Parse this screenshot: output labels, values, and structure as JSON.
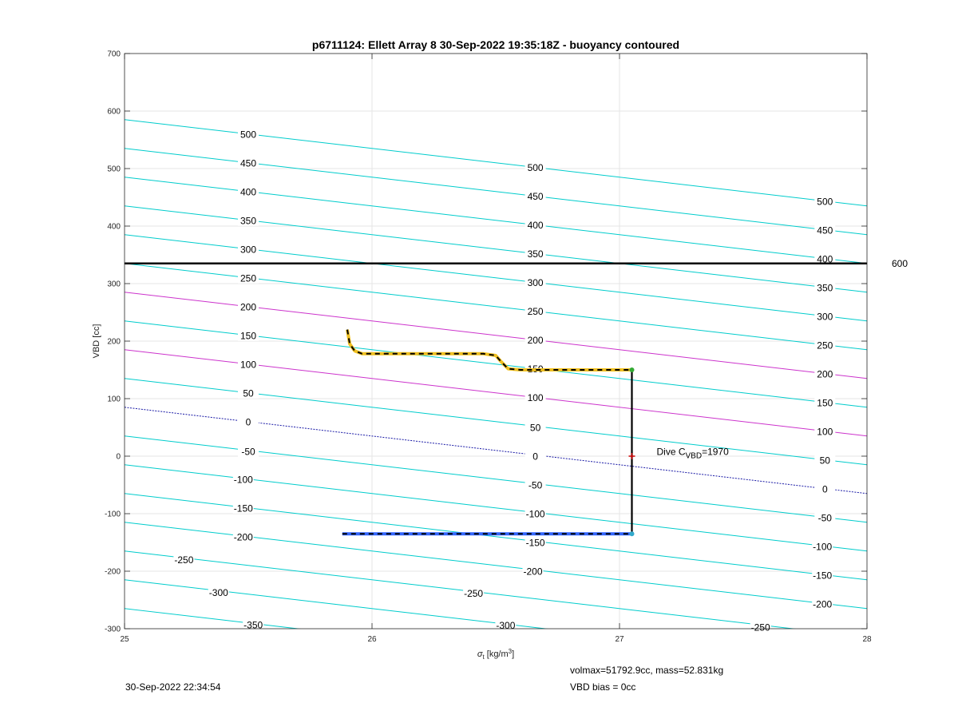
{
  "chart_data": {
    "type": "line",
    "title": "p6711124: Ellett Array 8 30-Sep-2022 19:35:18Z - buoyancy contoured",
    "xlabel": "σt [kg/m3]",
    "ylabel": "VBD [cc]",
    "xlim": [
      25,
      28
    ],
    "ylim": [
      -300,
      700
    ],
    "xticks": [
      25,
      26,
      27,
      28
    ],
    "yticks": [
      -300,
      -200,
      -100,
      0,
      100,
      200,
      300,
      400,
      500,
      600,
      700
    ],
    "grid": true,
    "contours": {
      "slope_cc_per_kgm3": -50,
      "lines": [
        {
          "level": -350,
          "y_at_25": -265,
          "color": "#00cccc"
        },
        {
          "level": -300,
          "y_at_25": -215,
          "color": "#00cccc"
        },
        {
          "level": -250,
          "y_at_25": -165,
          "color": "#00cccc"
        },
        {
          "level": -200,
          "y_at_25": -115,
          "color": "#00cccc"
        },
        {
          "level": -150,
          "y_at_25": -65,
          "color": "#00cccc"
        },
        {
          "level": -100,
          "y_at_25": -15,
          "color": "#00cccc"
        },
        {
          "level": -50,
          "y_at_25": 35,
          "color": "#00cccc"
        },
        {
          "level": 0,
          "y_at_25": 85,
          "color": "#1a1aa6",
          "dotted": true
        },
        {
          "level": 50,
          "y_at_25": 135,
          "color": "#00cccc"
        },
        {
          "level": 100,
          "y_at_25": 185,
          "color": "#cc33cc"
        },
        {
          "level": 150,
          "y_at_25": 235,
          "color": "#00cccc"
        },
        {
          "level": 200,
          "y_at_25": 285,
          "color": "#cc33cc"
        },
        {
          "level": 250,
          "y_at_25": 335,
          "color": "#00cccc"
        },
        {
          "level": 300,
          "y_at_25": 385,
          "color": "#00cccc"
        },
        {
          "level": 350,
          "y_at_25": 435,
          "color": "#00cccc"
        },
        {
          "level": 400,
          "y_at_25": 485,
          "color": "#00cccc"
        },
        {
          "level": 450,
          "y_at_25": 535,
          "color": "#00cccc"
        },
        {
          "level": 500,
          "y_at_25": 585,
          "color": "#00cccc"
        }
      ],
      "labels": [
        {
          "text": "500",
          "x": 25.5,
          "y": 560
        },
        {
          "text": "450",
          "x": 25.5,
          "y": 510
        },
        {
          "text": "400",
          "x": 25.5,
          "y": 460
        },
        {
          "text": "350",
          "x": 25.5,
          "y": 410
        },
        {
          "text": "300",
          "x": 25.5,
          "y": 360
        },
        {
          "text": "250",
          "x": 25.5,
          "y": 310
        },
        {
          "text": "200",
          "x": 25.5,
          "y": 260
        },
        {
          "text": "150",
          "x": 25.5,
          "y": 210
        },
        {
          "text": "100",
          "x": 25.5,
          "y": 160
        },
        {
          "text": "50",
          "x": 25.5,
          "y": 110
        },
        {
          "text": "0",
          "x": 25.5,
          "y": 60
        },
        {
          "text": "-50",
          "x": 25.5,
          "y": 8
        },
        {
          "text": "-100",
          "x": 25.48,
          "y": -40
        },
        {
          "text": "-150",
          "x": 25.48,
          "y": -90
        },
        {
          "text": "-200",
          "x": 25.48,
          "y": -140
        },
        {
          "text": "-250",
          "x": 25.24,
          "y": -180
        },
        {
          "text": "-300",
          "x": 25.38,
          "y": -237
        },
        {
          "text": "-350",
          "x": 25.52,
          "y": -293
        },
        {
          "text": "500",
          "x": 26.66,
          "y": 502
        },
        {
          "text": "450",
          "x": 26.66,
          "y": 452
        },
        {
          "text": "400",
          "x": 26.66,
          "y": 402
        },
        {
          "text": "350",
          "x": 26.66,
          "y": 352
        },
        {
          "text": "300",
          "x": 26.66,
          "y": 302
        },
        {
          "text": "250",
          "x": 26.66,
          "y": 252
        },
        {
          "text": "200",
          "x": 26.66,
          "y": 202
        },
        {
          "text": "150",
          "x": 26.66,
          "y": 152
        },
        {
          "text": "100",
          "x": 26.66,
          "y": 102
        },
        {
          "text": "50",
          "x": 26.66,
          "y": 50
        },
        {
          "text": "0",
          "x": 26.66,
          "y": 0
        },
        {
          "text": "-50",
          "x": 26.66,
          "y": -50
        },
        {
          "text": "-100",
          "x": 26.66,
          "y": -100
        },
        {
          "text": "-150",
          "x": 26.66,
          "y": -150
        },
        {
          "text": "-200",
          "x": 26.65,
          "y": -200
        },
        {
          "text": "-250",
          "x": 26.41,
          "y": -238
        },
        {
          "text": "-300",
          "x": 26.54,
          "y": -294
        },
        {
          "text": "500",
          "x": 27.83,
          "y": 443
        },
        {
          "text": "450",
          "x": 27.83,
          "y": 393
        },
        {
          "text": "400",
          "x": 27.83,
          "y": 343
        },
        {
          "text": "350",
          "x": 27.83,
          "y": 293
        },
        {
          "text": "300",
          "x": 27.83,
          "y": 243
        },
        {
          "text": "250",
          "x": 27.83,
          "y": 193
        },
        {
          "text": "200",
          "x": 27.83,
          "y": 143
        },
        {
          "text": "150",
          "x": 27.83,
          "y": 93
        },
        {
          "text": "100",
          "x": 27.83,
          "y": 43
        },
        {
          "text": "50",
          "x": 27.83,
          "y": -7
        },
        {
          "text": "0",
          "x": 27.83,
          "y": -57
        },
        {
          "text": "-50",
          "x": 27.83,
          "y": -107
        },
        {
          "text": "-100",
          "x": 27.82,
          "y": -157
        },
        {
          "text": "-150",
          "x": 27.82,
          "y": -207
        },
        {
          "text": "-200",
          "x": 27.82,
          "y": -257
        },
        {
          "text": "-250",
          "x": 27.57,
          "y": -297
        }
      ]
    },
    "reference_line": {
      "y": 335,
      "label": "600",
      "color": "#000000"
    },
    "series": [
      {
        "color": "#f0c020",
        "points": [
          [
            25.9,
            220
          ],
          [
            25.91,
            195
          ],
          [
            25.93,
            183
          ],
          [
            25.96,
            178
          ],
          [
            26.1,
            178
          ],
          [
            26.3,
            178
          ],
          [
            26.45,
            178
          ],
          [
            26.5,
            175
          ],
          [
            26.52,
            165
          ],
          [
            26.55,
            152
          ],
          [
            26.6,
            150
          ],
          [
            26.8,
            150
          ],
          [
            27.0,
            150
          ],
          [
            27.05,
            150
          ]
        ]
      },
      {
        "color": "#000000",
        "points": [
          [
            27.05,
            150
          ],
          [
            27.05,
            -135
          ]
        ]
      },
      {
        "color": "#3366ff",
        "points": [
          [
            25.88,
            -135
          ],
          [
            26.2,
            -135
          ],
          [
            26.5,
            -135
          ],
          [
            26.8,
            -135
          ],
          [
            27.05,
            -135
          ]
        ]
      }
    ],
    "markers": [
      {
        "x": 27.05,
        "y": 150,
        "color": "#33aa33"
      },
      {
        "x": 27.05,
        "y": 0,
        "color": "#cc0000"
      },
      {
        "x": 27.05,
        "y": -135,
        "color": "#33aacc"
      }
    ],
    "annotation": {
      "main": "Dive C",
      "sub": "VBD",
      "tail": "=1970",
      "x": 27.15,
      "y": 2
    }
  },
  "footer": {
    "timestamp": "30-Sep-2022 22:34:54",
    "volmax": "volmax=51792.9cc, mass=52.831kg",
    "vbd_bias": "VBD bias = 0cc"
  }
}
